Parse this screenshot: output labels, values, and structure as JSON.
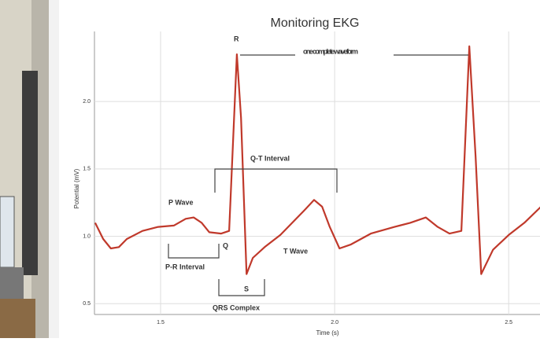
{
  "chart_data": {
    "type": "line",
    "title": "Monitoring EKG",
    "x_label": "Time (s)",
    "y_label": "Potential (mV)",
    "x": [
      1.312,
      1.335,
      1.357,
      1.38,
      1.403,
      1.448,
      1.493,
      1.538,
      1.572,
      1.595,
      1.618,
      1.64,
      1.674,
      1.697,
      1.719,
      1.731,
      1.747,
      1.765,
      1.799,
      1.844,
      1.878,
      1.912,
      1.941,
      1.964,
      1.986,
      2.014,
      2.047,
      2.104,
      2.172,
      2.217,
      2.262,
      2.296,
      2.33,
      2.364,
      2.387,
      2.405,
      2.421,
      2.455,
      2.5,
      2.545,
      2.593
    ],
    "values": [
      1.1,
      0.98,
      0.91,
      0.92,
      0.98,
      1.04,
      1.07,
      1.08,
      1.13,
      1.14,
      1.1,
      1.03,
      1.02,
      1.04,
      2.35,
      1.88,
      0.72,
      0.84,
      0.92,
      1.01,
      1.1,
      1.19,
      1.27,
      1.22,
      1.07,
      0.91,
      0.94,
      1.02,
      1.07,
      1.1,
      1.14,
      1.07,
      1.02,
      1.04,
      2.41,
      1.59,
      0.72,
      0.9,
      1.01,
      1.1,
      1.22
    ],
    "color": "#c0392b",
    "xlim": [
      1.31,
      2.59
    ],
    "ylim": [
      0.42,
      2.52
    ],
    "xticks": [
      {
        "value": 1.5,
        "label": "1.5"
      },
      {
        "value": 2.0,
        "label": "2.0"
      },
      {
        "value": 2.5,
        "label": "2.5"
      }
    ],
    "yticks": [
      {
        "value": 0.5,
        "label": "0.5"
      },
      {
        "value": 1.0,
        "label": "1.0"
      },
      {
        "value": 1.5,
        "label": "1.5"
      },
      {
        "value": 2.0,
        "label": "2.0"
      }
    ],
    "grid": true,
    "annotations": [
      "R",
      "one complete waveform",
      "Q-T Interval",
      "P Wave",
      "Q",
      "P-R Interval",
      "T Wave",
      "S",
      "QRS Complex"
    ]
  }
}
